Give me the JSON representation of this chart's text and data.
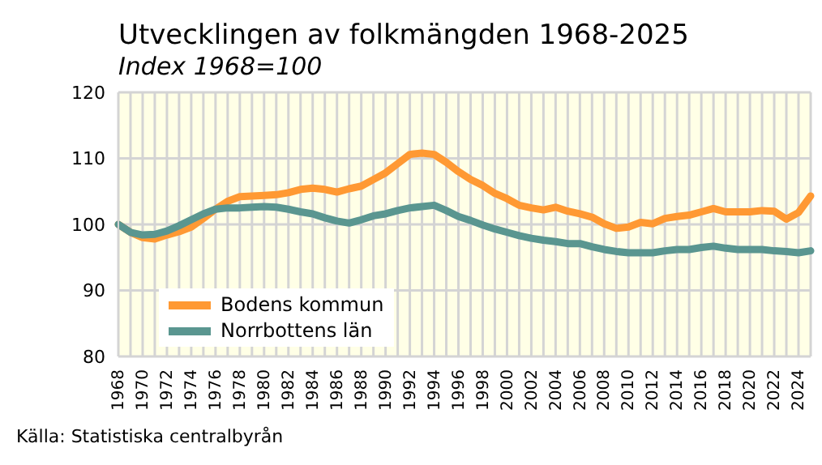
{
  "chart_data": {
    "type": "line",
    "title": "Utvecklingen av folkmängden 1968-2025",
    "subtitle": "Index 1968=100",
    "categories": [
      "1968",
      null,
      "1970",
      null,
      "1972",
      null,
      "1974",
      null,
      "1976",
      null,
      "1978",
      null,
      "1980",
      null,
      "1982",
      null,
      "1984",
      null,
      "1986",
      null,
      "1988",
      null,
      "1990",
      null,
      "1992",
      null,
      "1994",
      null,
      "1996",
      null,
      "1998",
      null,
      "2000",
      null,
      "2002",
      null,
      "2004",
      null,
      "2006",
      null,
      "2008",
      null,
      "2010",
      null,
      "2012",
      null,
      "2014",
      null,
      "2016",
      null,
      "2018",
      null,
      "2020",
      null,
      "2022",
      null,
      "2024",
      null
    ],
    "series": [
      {
        "name": "Bodens kommun",
        "color": "#ff9933",
        "values": [
          100,
          98.8,
          98.0,
          97.8,
          98.4,
          98.9,
          99.6,
          100.9,
          102.3,
          103.5,
          104.2,
          104.3,
          104.4,
          104.5,
          104.8,
          105.3,
          105.5,
          105.3,
          104.9,
          105.4,
          105.8,
          106.8,
          107.8,
          109.2,
          110.6,
          110.8,
          110.6,
          109.4,
          108.0,
          106.8,
          105.9,
          104.7,
          103.9,
          102.9,
          102.5,
          102.2,
          102.6,
          102.0,
          101.6,
          101.1,
          100.1,
          99.4,
          99.6,
          100.3,
          100.1,
          100.9,
          101.2,
          101.4,
          101.9,
          102.4,
          101.9,
          101.9,
          101.9,
          102.1,
          102.0,
          100.8,
          101.8,
          104.3
        ]
      },
      {
        "name": "Norrbottens län",
        "color": "#5a9690",
        "values": [
          100,
          98.8,
          98.4,
          98.5,
          99.0,
          99.8,
          100.7,
          101.6,
          102.3,
          102.5,
          102.5,
          102.6,
          102.7,
          102.6,
          102.3,
          101.9,
          101.6,
          101.0,
          100.5,
          100.2,
          100.7,
          101.3,
          101.6,
          102.1,
          102.5,
          102.7,
          102.9,
          102.1,
          101.2,
          100.6,
          99.9,
          99.3,
          98.8,
          98.3,
          97.9,
          97.6,
          97.4,
          97.1,
          97.1,
          96.6,
          96.2,
          95.9,
          95.7,
          95.7,
          95.7,
          96.0,
          96.2,
          96.2,
          96.5,
          96.7,
          96.4,
          96.2,
          96.2,
          96.2,
          96.0,
          95.9,
          95.7,
          96.0
        ]
      }
    ],
    "ylim": [
      80,
      120
    ],
    "yticks": [
      80,
      90,
      100,
      110,
      120
    ],
    "grid": true,
    "legend": "bottom left",
    "marker": "none",
    "line_style": "solid",
    "annotations": [
      "Källa: Statistiska centralbyrån"
    ]
  }
}
